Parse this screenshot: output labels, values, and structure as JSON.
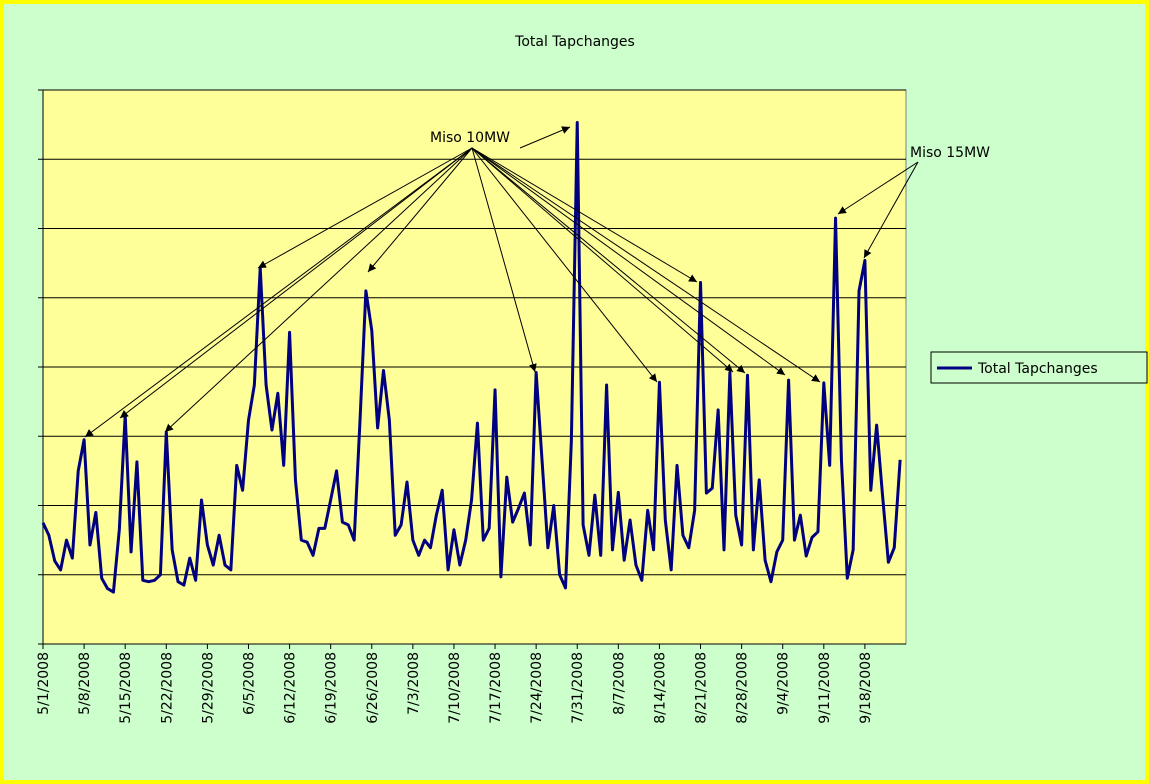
{
  "chart_data": {
    "type": "line",
    "title": "Total Tapchanges",
    "categories": [
      "5/1/2008",
      null,
      null,
      null,
      null,
      null,
      null,
      "5/8/2008",
      null,
      null,
      null,
      null,
      null,
      null,
      "5/15/2008",
      null,
      null,
      null,
      null,
      null,
      null,
      "5/22/2008",
      null,
      null,
      null,
      null,
      null,
      null,
      "5/29/2008",
      null,
      null,
      null,
      null,
      null,
      null,
      "6/5/2008",
      null,
      null,
      null,
      null,
      null,
      null,
      "6/12/2008",
      null,
      null,
      null,
      null,
      null,
      null,
      "6/19/2008",
      null,
      null,
      null,
      null,
      null,
      null,
      "6/26/2008",
      null,
      null,
      null,
      null,
      null,
      null,
      "7/3/2008",
      null,
      null,
      null,
      null,
      null,
      null,
      "7/10/2008",
      null,
      null,
      null,
      null,
      null,
      null,
      "7/17/2008",
      null,
      null,
      null,
      null,
      null,
      null,
      "7/24/2008",
      null,
      null,
      null,
      null,
      null,
      null,
      "7/31/2008",
      null,
      null,
      null,
      null,
      null,
      null,
      "8/7/2008",
      null,
      null,
      null,
      null,
      null,
      null,
      "8/14/2008",
      null,
      null,
      null,
      null,
      null,
      null,
      "8/21/2008",
      null,
      null,
      null,
      null,
      null,
      null,
      "8/28/2008",
      null,
      null,
      null,
      null,
      null,
      null,
      "9/4/2008",
      null,
      null,
      null,
      null,
      null,
      null,
      "9/11/2008",
      null,
      null,
      null,
      null,
      null,
      null,
      "9/18/2008",
      null,
      null,
      null,
      null,
      null,
      null
    ],
    "series": [
      {
        "name": "Total Tapchanges",
        "color": "#000080",
        "values": [
          1.75,
          1.57,
          1.2,
          1.07,
          1.5,
          1.24,
          2.5,
          2.95,
          1.43,
          1.9,
          0.95,
          0.8,
          0.75,
          1.65,
          3.3,
          1.33,
          2.63,
          0.92,
          0.9,
          0.92,
          1.0,
          3.06,
          1.36,
          0.9,
          0.85,
          1.24,
          0.92,
          2.08,
          1.43,
          1.14,
          1.57,
          1.14,
          1.07,
          2.58,
          2.22,
          3.23,
          3.74,
          5.43,
          3.74,
          3.09,
          3.62,
          2.58,
          4.5,
          2.37,
          1.5,
          1.47,
          1.28,
          1.67,
          1.67,
          2.08,
          2.5,
          1.76,
          1.72,
          1.5,
          3.23,
          5.1,
          4.53,
          3.12,
          3.95,
          3.23,
          1.57,
          1.72,
          2.34,
          1.5,
          1.28,
          1.5,
          1.39,
          1.86,
          2.22,
          1.07,
          1.65,
          1.14,
          1.5,
          2.08,
          3.19,
          1.5,
          1.67,
          3.67,
          0.97,
          2.41,
          1.76,
          1.96,
          2.18,
          1.43,
          3.92,
          2.66,
          1.39,
          2.0,
          1.0,
          0.81,
          2.94,
          7.53,
          1.72,
          1.28,
          2.15,
          1.28,
          3.74,
          1.36,
          2.19,
          1.21,
          1.79,
          1.14,
          0.92,
          1.93,
          1.36,
          3.78,
          1.79,
          1.07,
          2.58,
          1.57,
          1.39,
          1.93,
          5.22,
          2.18,
          2.25,
          3.38,
          1.36,
          3.92,
          1.86,
          1.43,
          3.88,
          1.36,
          2.37,
          1.21,
          0.9,
          1.33,
          1.5,
          3.81,
          1.5,
          1.86,
          1.27,
          1.54,
          1.62,
          3.77,
          2.58,
          6.15,
          2.66,
          0.95,
          1.36,
          5.1,
          5.54,
          2.22,
          3.16,
          2.15,
          1.18,
          1.39,
          2.66
        ]
      }
    ],
    "ylim": [
      0,
      8
    ],
    "yticks": [
      0,
      1,
      2,
      3,
      4,
      5,
      6,
      7,
      8
    ],
    "grid": true,
    "legend": "right",
    "annotations": [
      "Miso 10MW",
      "Miso 15MW"
    ]
  }
}
